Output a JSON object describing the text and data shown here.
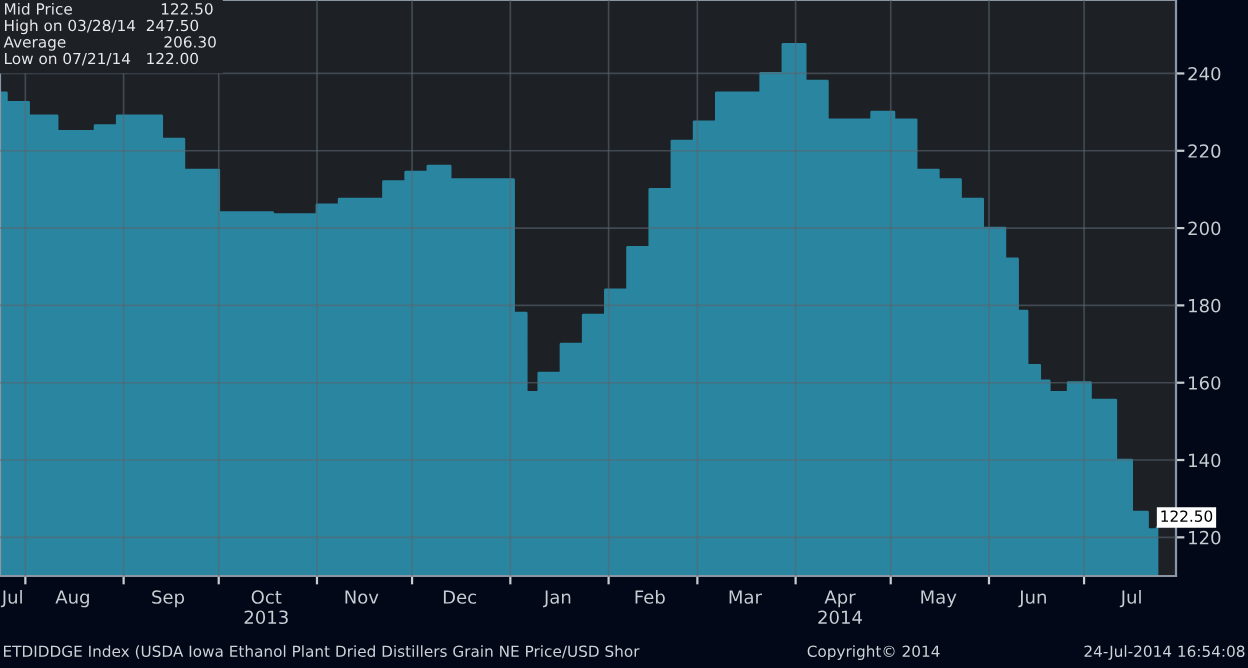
{
  "chart_data": {
    "type": "area",
    "x": [
      "2013-07-24",
      "2013-07-26",
      "2013-08-02",
      "2013-08-11",
      "2013-08-23",
      "2013-08-30",
      "2013-09-13",
      "2013-09-20",
      "2013-10-01",
      "2013-10-18",
      "2013-11-01",
      "2013-11-08",
      "2013-11-22",
      "2013-11-29",
      "2013-12-06",
      "2013-12-13",
      "2014-01-02",
      "2014-01-06",
      "2014-01-10",
      "2014-01-17",
      "2014-01-24",
      "2014-01-31",
      "2014-02-07",
      "2014-02-14",
      "2014-02-21",
      "2014-02-28",
      "2014-03-07",
      "2014-03-21",
      "2014-03-28",
      "2014-04-04",
      "2014-04-11",
      "2014-04-25",
      "2014-05-02",
      "2014-05-09",
      "2014-05-16",
      "2014-05-23",
      "2014-05-30",
      "2014-06-06",
      "2014-06-10",
      "2014-06-13",
      "2014-06-17",
      "2014-06-20",
      "2014-06-26",
      "2014-07-03",
      "2014-07-11",
      "2014-07-16",
      "2014-07-21",
      "2014-07-24"
    ],
    "series": [
      {
        "color": "#2a86a0",
        "values": [
          235,
          232.5,
          229,
          225,
          226.5,
          229,
          223,
          215,
          204,
          203.5,
          206,
          207.5,
          212,
          214.5,
          216,
          212.5,
          178,
          157.5,
          162.5,
          170,
          177.5,
          184,
          195,
          210,
          222.5,
          227.5,
          235,
          240,
          247.5,
          238,
          228,
          230,
          228,
          215,
          212.5,
          207.5,
          200,
          192,
          178.5,
          164.5,
          160.5,
          157.5,
          160,
          155.5,
          140,
          126.5,
          122,
          122.5
        ],
        "value_labels": [
          null,
          null,
          null,
          null,
          null,
          null,
          null,
          null,
          null,
          null,
          null,
          null,
          null,
          null,
          null,
          null,
          null,
          null,
          null,
          null,
          null,
          null,
          null,
          null,
          null,
          null,
          null,
          null,
          null,
          null,
          null,
          null,
          null,
          null,
          null,
          null,
          null,
          null,
          null,
          null,
          null,
          null,
          null,
          null,
          null,
          null,
          null,
          "122.50"
        ]
      }
    ],
    "xlim": [
      "2013-07-24",
      "2014-07-30"
    ],
    "xticks": [
      {
        "value": "2013-07-28",
        "label": "Jul"
      },
      {
        "value": "2013-08-01",
        "label": null
      },
      {
        "value": "2013-08-16",
        "label": "Aug"
      },
      {
        "value": "2013-09-01",
        "label": null
      },
      {
        "value": "2013-09-15",
        "label": "Sep"
      },
      {
        "value": "2013-10-01",
        "label": null
      },
      {
        "value": "2013-10-16",
        "label": "Oct\n2013"
      },
      {
        "value": "2013-11-01",
        "label": null
      },
      {
        "value": "2013-11-15",
        "label": "Nov"
      },
      {
        "value": "2013-12-01",
        "label": null
      },
      {
        "value": "2013-12-16",
        "label": "Dec"
      },
      {
        "value": "2014-01-01",
        "label": null
      },
      {
        "value": "2014-01-16",
        "label": "Jan"
      },
      {
        "value": "2014-02-01",
        "label": null
      },
      {
        "value": "2014-02-14",
        "label": "Feb"
      },
      {
        "value": "2014-03-01",
        "label": null
      },
      {
        "value": "2014-03-16",
        "label": "Mar"
      },
      {
        "value": "2014-04-01",
        "label": null
      },
      {
        "value": "2014-04-15",
        "label": "Apr\n2014"
      },
      {
        "value": "2014-05-01",
        "label": null
      },
      {
        "value": "2014-05-16",
        "label": "May"
      },
      {
        "value": "2014-06-01",
        "label": null
      },
      {
        "value": "2014-06-15",
        "label": "Jun"
      },
      {
        "value": "2014-07-01",
        "label": null
      },
      {
        "value": "2014-07-16",
        "label": "Jul"
      }
    ],
    "ylim": [
      110,
      259
    ],
    "yticks": [
      120,
      140,
      160,
      180,
      200,
      220,
      240
    ],
    "grid": true,
    "annotations": [
      "Mid Price                  122.50",
      "High on 03/28/14  247.50",
      "Average                    206.30",
      "Low on 07/21/14   122.00",
      "ETDIDDGE Index (USDA Iowa Ethanol Plant Dried Distillers Grain NE Price/USD Shor",
      "Copyright© 2014",
      "24-Jul-2014 16:54:08"
    ]
  }
}
